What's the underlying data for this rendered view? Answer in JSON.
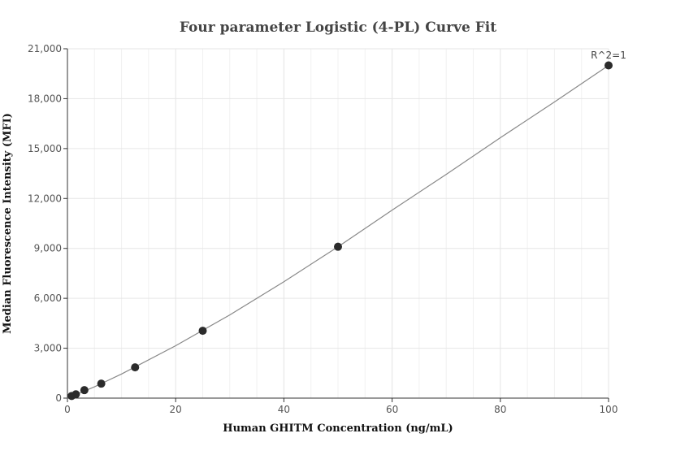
{
  "chart_data": {
    "type": "scatter",
    "title": "Four parameter Logistic (4-PL) Curve Fit",
    "xlabel": "Human GHITM Concentration (ng/mL)",
    "ylabel": "Median Fluorescence Intensity (MFI)",
    "xlim": [
      0,
      100
    ],
    "ylim": [
      0,
      21000
    ],
    "x_ticks": [
      0,
      20,
      40,
      60,
      80,
      100
    ],
    "y_ticks": [
      0,
      3000,
      6000,
      9000,
      12000,
      15000,
      18000,
      21000
    ],
    "x_tick_labels": [
      "0",
      "20",
      "40",
      "60",
      "80",
      "100"
    ],
    "y_tick_labels": [
      "0",
      "3,000",
      "6,000",
      "9,000",
      "12,000",
      "15,000",
      "18,000",
      "21,000"
    ],
    "grid": true,
    "annotation": "R^2=1",
    "series": [
      {
        "points": [
          {
            "x": 0.78,
            "y": 130
          },
          {
            "x": 1.56,
            "y": 230
          },
          {
            "x": 3.13,
            "y": 480
          },
          {
            "x": 6.25,
            "y": 870
          },
          {
            "x": 12.5,
            "y": 1850
          },
          {
            "x": 25,
            "y": 4050
          },
          {
            "x": 50,
            "y": 9100
          },
          {
            "x": 100,
            "y": 20000
          }
        ]
      }
    ],
    "fit_curve": {
      "x": [
        0,
        5,
        10,
        20,
        30,
        40,
        50,
        60,
        70,
        80,
        90,
        100
      ],
      "y": [
        0,
        680,
        1450,
        3150,
        5000,
        7000,
        9100,
        11300,
        13450,
        15650,
        17800,
        20000
      ]
    },
    "colors": {
      "point": "#2b2b2b",
      "line": "#888888",
      "grid": "#e6e6e6",
      "axis": "#333333"
    }
  }
}
